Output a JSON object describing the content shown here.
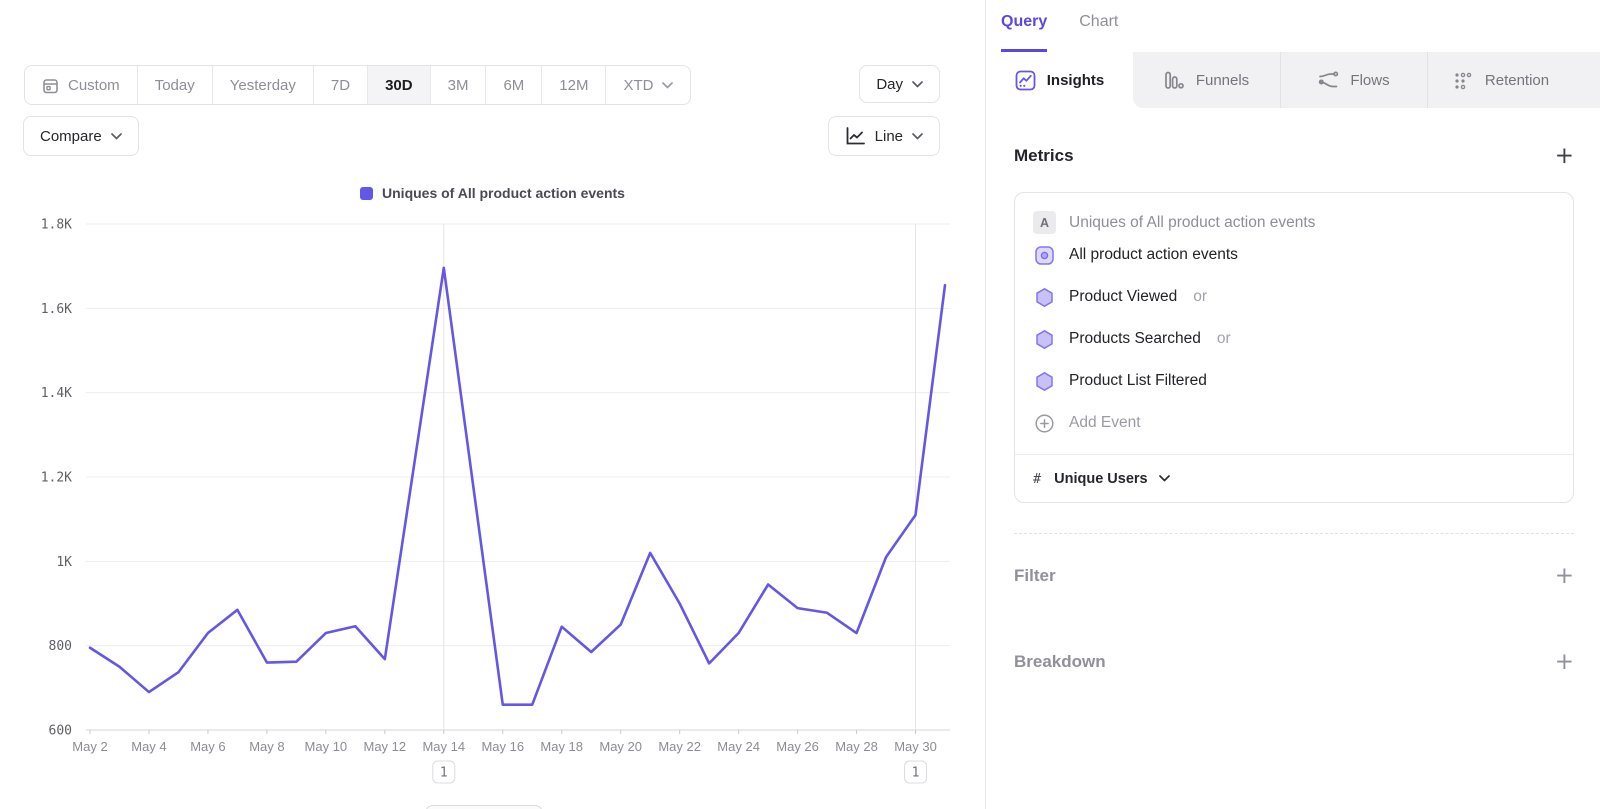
{
  "toolbar": {
    "ranges": [
      "Custom",
      "Today",
      "Yesterday",
      "7D",
      "30D",
      "3M",
      "6M",
      "12M",
      "XTD"
    ],
    "selected_range": "30D",
    "granularity": "Day",
    "compare_label": "Compare",
    "chart_type_label": "Line"
  },
  "chart_data": {
    "type": "line",
    "series": [
      {
        "name": "Uniques of All product action events",
        "values": [
          795,
          750,
          690,
          737,
          830,
          885,
          760,
          762,
          830,
          846,
          768,
          1232,
          1696,
          1178,
          660,
          660,
          845,
          785,
          850,
          1020,
          900,
          758,
          830,
          945,
          889,
          878,
          830,
          1010,
          1110,
          1655
        ]
      }
    ],
    "x": [
      "May 2",
      "May 3",
      "May 4",
      "May 5",
      "May 6",
      "May 7",
      "May 8",
      "May 9",
      "May 10",
      "May 11",
      "May 12",
      "May 13",
      "May 14",
      "May 15",
      "May 16",
      "May 17",
      "May 18",
      "May 19",
      "May 20",
      "May 21",
      "May 22",
      "May 23",
      "May 24",
      "May 25",
      "May 26",
      "May 27",
      "May 28",
      "May 29",
      "May 30",
      "May 31"
    ],
    "x_tick_every": 2,
    "ylim": [
      600,
      1800
    ],
    "y_ticks": [
      {
        "value": 600,
        "label": "600"
      },
      {
        "value": 800,
        "label": "800"
      },
      {
        "value": 1000,
        "label": "1K"
      },
      {
        "value": 1200,
        "label": "1.2K"
      },
      {
        "value": 1400,
        "label": "1.4K"
      },
      {
        "value": 1600,
        "label": "1.6K"
      },
      {
        "value": 1800,
        "label": "1.8K"
      }
    ],
    "line_color": "#6456e6",
    "grid": true,
    "legend_position": "top",
    "annotations": [
      {
        "x": "May 14",
        "x_index": 12,
        "label": "1"
      },
      {
        "x": "May 30",
        "x_index": 28,
        "label": "1"
      }
    ]
  },
  "right_panel": {
    "tabs": [
      {
        "label": "Query"
      },
      {
        "label": "Chart"
      }
    ],
    "active_tab": "Query",
    "report_tabs": [
      {
        "label": "Insights",
        "icon": "insights-icon"
      },
      {
        "label": "Funnels",
        "icon": "funnels-icon"
      },
      {
        "label": "Flows",
        "icon": "flows-icon"
      },
      {
        "label": "Retention",
        "icon": "retention-icon"
      }
    ],
    "active_report_tab": "Insights",
    "metrics": {
      "title": "Metrics",
      "add_label": "+",
      "formula_badge": "A",
      "formula_text": "Uniques of All product action events",
      "events": [
        {
          "name": "All product action events",
          "suffix": ""
        },
        {
          "name": "Product Viewed",
          "suffix": "or"
        },
        {
          "name": "Products Searched",
          "suffix": "or"
        },
        {
          "name": "Product List Filtered",
          "suffix": ""
        }
      ],
      "add_event_label": "Add Event",
      "aggregation_prefix": "#",
      "aggregation": "Unique Users"
    },
    "filter": {
      "title": "Filter",
      "add_label": "+"
    },
    "breakdown": {
      "title": "Breakdown",
      "add_label": "+"
    }
  }
}
